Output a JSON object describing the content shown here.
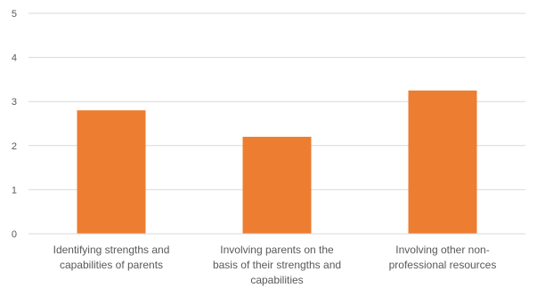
{
  "chart_data": {
    "type": "bar",
    "title": "",
    "xlabel": "",
    "ylabel": "",
    "ylim": [
      0,
      5
    ],
    "yticks": [
      0,
      1,
      2,
      3,
      4,
      5
    ],
    "grid": true,
    "legend": "none",
    "bar_color": "#ED7D31",
    "categories": [
      [
        "Identifying strengths and",
        "capabilities of parents"
      ],
      [
        "Involving parents on the",
        "basis of their strengths and",
        "capabilities"
      ],
      [
        "Involving other non-",
        "professional resources"
      ]
    ],
    "values": [
      2.8,
      2.2,
      3.25
    ]
  }
}
